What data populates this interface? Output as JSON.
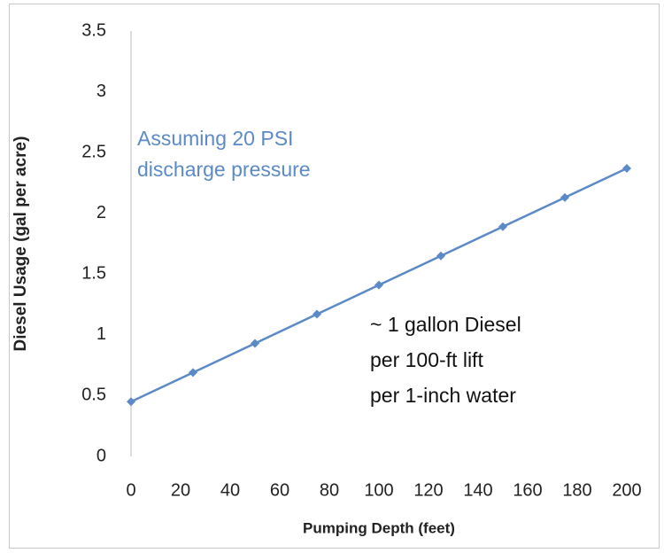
{
  "chart_data": {
    "type": "line",
    "x_label": "Pumping Depth (feet)",
    "y_label": "Diesel Usage (gal per acre)",
    "x": [
      0,
      25,
      50,
      75,
      100,
      125,
      150,
      175,
      200
    ],
    "series": [
      {
        "name": "Diesel Usage",
        "color": "#5b8ac6",
        "values": [
          0.45,
          0.69,
          0.93,
          1.17,
          1.41,
          1.65,
          1.89,
          2.13,
          2.37
        ]
      }
    ],
    "xlim": [
      0,
      200
    ],
    "xticks": [
      0,
      20,
      40,
      60,
      80,
      100,
      120,
      140,
      160,
      180,
      200
    ],
    "ylim": [
      0,
      3.5
    ],
    "yticks": [
      0,
      0.5,
      1,
      1.5,
      2,
      2.5,
      3,
      3.5
    ],
    "grid": false,
    "annotations": [
      {
        "lines": [
          "Assuming 20 PSI",
          "discharge pressure"
        ],
        "color": "#5b8ac6"
      },
      {
        "lines": [
          "~ 1 gallon Diesel",
          "per 100-ft lift",
          "per 1-inch water"
        ],
        "color": "#111111"
      }
    ]
  }
}
